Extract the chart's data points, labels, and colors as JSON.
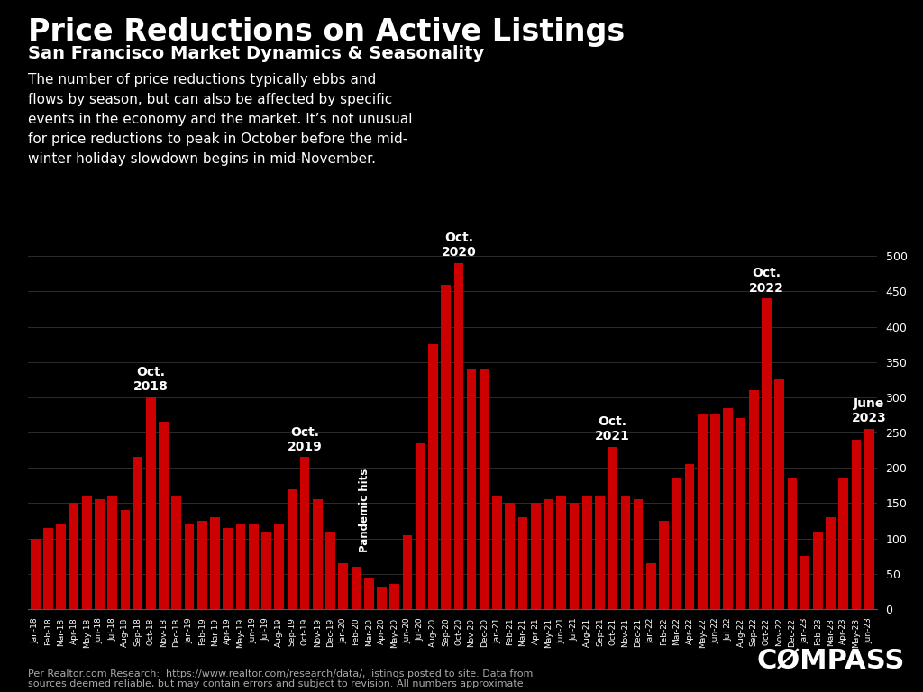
{
  "title": "Price Reductions on Active Listings",
  "subtitle": "San Francisco Market Dynamics & Seasonality",
  "background_color": "#000000",
  "bar_color": "#cc0000",
  "text_color": "#ffffff",
  "annotation_text": "The number of price reductions typically ebbs and\nflows by season, but can also be affected by specific\nevents in the economy and the market. It’s not unusual\nfor price reductions to peak in October before the mid-\nwinter holiday slowdown begins in mid-November.",
  "footer_text": "Per Realtor.com Research:  https://www.realtor.com/research/data/, listings posted to site. Data from\nsources deemed reliable, but may contain errors and subject to revision. All numbers approximate.",
  "labels": [
    "Jan-18",
    "Feb-18",
    "Mar-18",
    "Apr-18",
    "May-18",
    "Jun-18",
    "Jul-18",
    "Aug-18",
    "Sep-18",
    "Oct-18",
    "Nov-18",
    "Dec-18",
    "Jan-19",
    "Feb-19",
    "Mar-19",
    "Apr-19",
    "May-19",
    "Jun-19",
    "Jul-19",
    "Aug-19",
    "Sep-19",
    "Oct-19",
    "Nov-19",
    "Dec-19",
    "Jan-20",
    "Feb-20",
    "Mar-20",
    "Apr-20",
    "May-20",
    "Jun-20",
    "Jul-20",
    "Aug-20",
    "Sep-20",
    "Oct-20",
    "Nov-20",
    "Dec-20",
    "Jan-21",
    "Feb-21",
    "Mar-21",
    "Apr-21",
    "May-21",
    "Jun-21",
    "Jul-21",
    "Aug-21",
    "Sep-21",
    "Oct-21",
    "Nov-21",
    "Dec-21",
    "Jan-22",
    "Feb-22",
    "Mar-22",
    "Apr-22",
    "May-22",
    "Jun-22",
    "Jul-22",
    "Aug-22",
    "Sep-22",
    "Oct-22",
    "Nov-22",
    "Dec-22",
    "Jan-23",
    "Feb-23",
    "Mar-23",
    "Apr-23",
    "May-23",
    "Jun-23"
  ],
  "values": [
    100,
    115,
    120,
    150,
    160,
    155,
    160,
    140,
    215,
    300,
    265,
    160,
    120,
    125,
    130,
    115,
    120,
    120,
    110,
    120,
    170,
    215,
    155,
    110,
    65,
    60,
    45,
    30,
    35,
    105,
    235,
    375,
    460,
    490,
    340,
    340,
    160,
    150,
    130,
    150,
    155,
    160,
    150,
    160,
    160,
    230,
    160,
    155,
    65,
    125,
    185,
    205,
    275,
    275,
    285,
    270,
    310,
    440,
    325,
    185,
    75,
    110,
    130,
    185,
    240,
    255
  ],
  "peak_annotations": [
    {
      "label": "Oct.\n2018",
      "index": 9
    },
    {
      "label": "Oct.\n2019",
      "index": 21
    },
    {
      "label": "Oct.\n2020",
      "index": 33
    },
    {
      "label": "Oct.\n2021",
      "index": 45
    },
    {
      "label": "Oct.\n2022",
      "index": 57
    },
    {
      "label": "June\n2023",
      "index": 65
    }
  ],
  "pandemic_label": "Pandemic hits",
  "pandemic_index": 26,
  "ylim": [
    0,
    510
  ],
  "yticks": [
    0,
    50,
    100,
    150,
    200,
    250,
    300,
    350,
    400,
    450,
    500
  ],
  "title_fontsize": 24,
  "subtitle_fontsize": 14,
  "annotation_fontsize": 11,
  "peak_fontsize": 10,
  "footer_fontsize": 8
}
